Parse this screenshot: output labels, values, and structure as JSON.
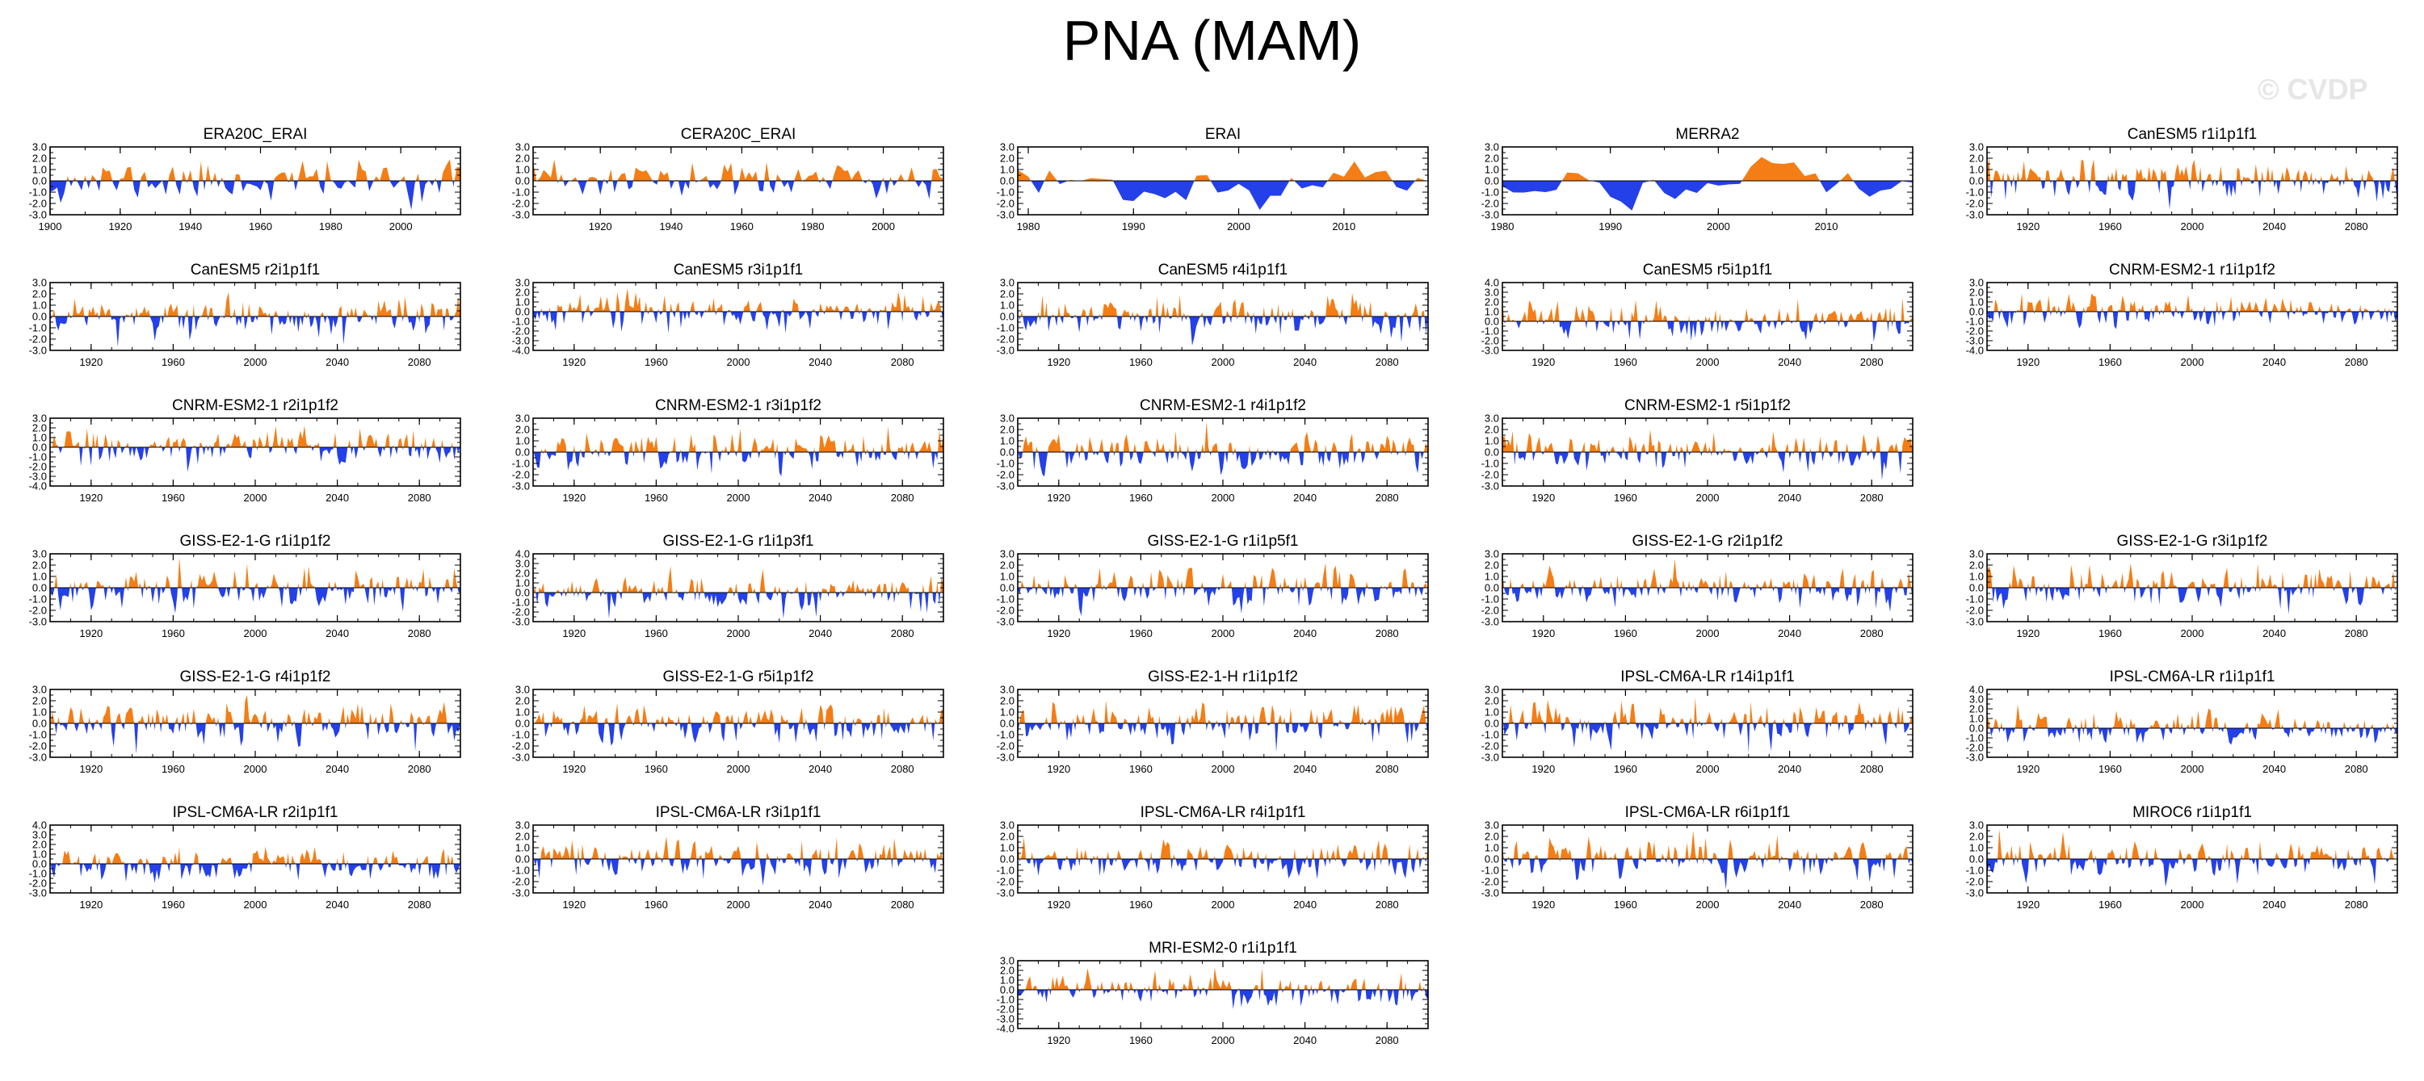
{
  "figure": {
    "title": "PNA (MAM)",
    "watermark": "© CVDP",
    "colors": {
      "positive": "#f47d15",
      "negative": "#2440e8",
      "axis": "#000000"
    }
  },
  "chart_data": [
    {
      "type": "area",
      "title": "ERA20C_ERAI",
      "xlim": [
        1900,
        2017
      ],
      "xticks": [
        1900,
        1920,
        1940,
        1960,
        1980,
        2000
      ],
      "ylim": [
        -3,
        3
      ],
      "yticks": [
        3,
        2,
        1,
        0,
        -1,
        -2,
        -3
      ],
      "seed": 11
    },
    {
      "type": "area",
      "title": "CERA20C_ERAI",
      "xlim": [
        1901,
        2017
      ],
      "xticks": [
        1920,
        1940,
        1960,
        1980,
        2000
      ],
      "ylim": [
        -3,
        3
      ],
      "yticks": [
        3,
        2,
        1,
        0,
        -1,
        -2,
        -3
      ],
      "seed": 23
    },
    {
      "type": "area",
      "title": "ERAI",
      "xlim": [
        1979,
        2018
      ],
      "xticks": [
        1980,
        1990,
        2000,
        2010
      ],
      "ylim": [
        -3,
        3
      ],
      "yticks": [
        3,
        2,
        1,
        0,
        -1,
        -2,
        -3
      ],
      "seed": 37
    },
    {
      "type": "area",
      "title": "MERRA2",
      "xlim": [
        1980,
        2018
      ],
      "xticks": [
        1980,
        1990,
        2000,
        2010
      ],
      "ylim": [
        -3,
        3
      ],
      "yticks": [
        3,
        2,
        1,
        0,
        -1,
        -2,
        -3
      ],
      "seed": 41
    },
    {
      "type": "area",
      "title": "CanESM5 r1i1p1f1",
      "xlim": [
        1900,
        2100
      ],
      "xticks": [
        1920,
        1960,
        2000,
        2040,
        2080
      ],
      "ylim": [
        -3,
        3
      ],
      "yticks": [
        3,
        2,
        1,
        0,
        -1,
        -2,
        -3
      ],
      "seed": 53
    },
    {
      "type": "area",
      "title": "CanESM5 r2i1p1f1",
      "xlim": [
        1900,
        2100
      ],
      "xticks": [
        1920,
        1960,
        2000,
        2040,
        2080
      ],
      "ylim": [
        -3,
        3
      ],
      "yticks": [
        3,
        2,
        1,
        0,
        -1,
        -2,
        -3
      ],
      "seed": 61
    },
    {
      "type": "area",
      "title": "CanESM5 r3i1p1f1",
      "xlim": [
        1900,
        2100
      ],
      "xticks": [
        1920,
        1960,
        2000,
        2040,
        2080
      ],
      "ylim": [
        -4,
        3
      ],
      "yticks": [
        3,
        2,
        1,
        0,
        -1,
        -2,
        -3,
        -4
      ],
      "seed": 67
    },
    {
      "type": "area",
      "title": "CanESM5 r4i1p1f1",
      "xlim": [
        1900,
        2100
      ],
      "xticks": [
        1920,
        1960,
        2000,
        2040,
        2080
      ],
      "ylim": [
        -3,
        3
      ],
      "yticks": [
        3,
        2,
        1,
        0,
        -1,
        -2,
        -3
      ],
      "seed": 71
    },
    {
      "type": "area",
      "title": "CanESM5 r5i1p1f1",
      "xlim": [
        1900,
        2100
      ],
      "xticks": [
        1920,
        1960,
        2000,
        2040,
        2080
      ],
      "ylim": [
        -3,
        4
      ],
      "yticks": [
        4,
        3,
        2,
        1,
        0,
        -1,
        -2,
        -3
      ],
      "seed": 79
    },
    {
      "type": "area",
      "title": "CNRM-ESM2-1 r1i1p1f2",
      "xlim": [
        1900,
        2100
      ],
      "xticks": [
        1920,
        1960,
        2000,
        2040,
        2080
      ],
      "ylim": [
        -4,
        3
      ],
      "yticks": [
        3,
        2,
        1,
        0,
        -1,
        -2,
        -3,
        -4
      ],
      "seed": 83
    },
    {
      "type": "area",
      "title": "CNRM-ESM2-1 r2i1p1f2",
      "xlim": [
        1900,
        2100
      ],
      "xticks": [
        1920,
        1960,
        2000,
        2040,
        2080
      ],
      "ylim": [
        -4,
        3
      ],
      "yticks": [
        3,
        2,
        1,
        0,
        -1,
        -2,
        -3,
        -4
      ],
      "seed": 89
    },
    {
      "type": "area",
      "title": "CNRM-ESM2-1 r3i1p1f2",
      "xlim": [
        1900,
        2100
      ],
      "xticks": [
        1920,
        1960,
        2000,
        2040,
        2080
      ],
      "ylim": [
        -3,
        3
      ],
      "yticks": [
        3,
        2,
        1,
        0,
        -1,
        -2,
        -3
      ],
      "seed": 97
    },
    {
      "type": "area",
      "title": "CNRM-ESM2-1 r4i1p1f2",
      "xlim": [
        1900,
        2100
      ],
      "xticks": [
        1920,
        1960,
        2000,
        2040,
        2080
      ],
      "ylim": [
        -3,
        3
      ],
      "yticks": [
        3,
        2,
        1,
        0,
        -1,
        -2,
        -3
      ],
      "seed": 101
    },
    {
      "type": "area",
      "title": "CNRM-ESM2-1 r5i1p1f2",
      "xlim": [
        1900,
        2100
      ],
      "xticks": [
        1920,
        1960,
        2000,
        2040,
        2080
      ],
      "ylim": [
        -3,
        3
      ],
      "yticks": [
        3,
        2,
        1,
        0,
        -1,
        -2,
        -3
      ],
      "seed": 103
    },
    {
      "type": "area",
      "title": "GISS-E2-1-G r1i1p1f2",
      "xlim": [
        1900,
        2100
      ],
      "xticks": [
        1920,
        1960,
        2000,
        2040,
        2080
      ],
      "ylim": [
        -3,
        3
      ],
      "yticks": [
        3,
        2,
        1,
        0,
        -1,
        -2,
        -3
      ],
      "seed": 107
    },
    {
      "type": "area",
      "title": "GISS-E2-1-G r1i1p3f1",
      "xlim": [
        1900,
        2100
      ],
      "xticks": [
        1920,
        1960,
        2000,
        2040,
        2080
      ],
      "ylim": [
        -3,
        4
      ],
      "yticks": [
        4,
        3,
        2,
        1,
        0,
        -1,
        -2,
        -3
      ],
      "seed": 109
    },
    {
      "type": "area",
      "title": "GISS-E2-1-G r1i1p5f1",
      "xlim": [
        1900,
        2100
      ],
      "xticks": [
        1920,
        1960,
        2000,
        2040,
        2080
      ],
      "ylim": [
        -3,
        3
      ],
      "yticks": [
        3,
        2,
        1,
        0,
        -1,
        -2,
        -3
      ],
      "seed": 113
    },
    {
      "type": "area",
      "title": "GISS-E2-1-G r2i1p1f2",
      "xlim": [
        1900,
        2100
      ],
      "xticks": [
        1920,
        1960,
        2000,
        2040,
        2080
      ],
      "ylim": [
        -3,
        3
      ],
      "yticks": [
        3,
        2,
        1,
        0,
        -1,
        -2,
        -3
      ],
      "seed": 127
    },
    {
      "type": "area",
      "title": "GISS-E2-1-G r3i1p1f2",
      "xlim": [
        1900,
        2100
      ],
      "xticks": [
        1920,
        1960,
        2000,
        2040,
        2080
      ],
      "ylim": [
        -3,
        3
      ],
      "yticks": [
        3,
        2,
        1,
        0,
        -1,
        -2,
        -3
      ],
      "seed": 131
    },
    {
      "type": "area",
      "title": "GISS-E2-1-G r4i1p1f2",
      "xlim": [
        1900,
        2100
      ],
      "xticks": [
        1920,
        1960,
        2000,
        2040,
        2080
      ],
      "ylim": [
        -3,
        3
      ],
      "yticks": [
        3,
        2,
        1,
        0,
        -1,
        -2,
        -3
      ],
      "seed": 137
    },
    {
      "type": "area",
      "title": "GISS-E2-1-G r5i1p1f2",
      "xlim": [
        1900,
        2100
      ],
      "xticks": [
        1920,
        1960,
        2000,
        2040,
        2080
      ],
      "ylim": [
        -3,
        3
      ],
      "yticks": [
        3,
        2,
        1,
        0,
        -1,
        -2,
        -3
      ],
      "seed": 139
    },
    {
      "type": "area",
      "title": "GISS-E2-1-H r1i1p1f2",
      "xlim": [
        1900,
        2100
      ],
      "xticks": [
        1920,
        1960,
        2000,
        2040,
        2080
      ],
      "ylim": [
        -3,
        3
      ],
      "yticks": [
        3,
        2,
        1,
        0,
        -1,
        -2,
        -3
      ],
      "seed": 149
    },
    {
      "type": "area",
      "title": "IPSL-CM6A-LR r14i1p1f1",
      "xlim": [
        1900,
        2100
      ],
      "xticks": [
        1920,
        1960,
        2000,
        2040,
        2080
      ],
      "ylim": [
        -3,
        3
      ],
      "yticks": [
        3,
        2,
        1,
        0,
        -1,
        -2,
        -3
      ],
      "seed": 151
    },
    {
      "type": "area",
      "title": "IPSL-CM6A-LR r1i1p1f1",
      "xlim": [
        1900,
        2100
      ],
      "xticks": [
        1920,
        1960,
        2000,
        2040,
        2080
      ],
      "ylim": [
        -3,
        4
      ],
      "yticks": [
        4,
        3,
        2,
        1,
        0,
        -1,
        -2,
        -3
      ],
      "seed": 157
    },
    {
      "type": "area",
      "title": "IPSL-CM6A-LR r2i1p1f1",
      "xlim": [
        1900,
        2100
      ],
      "xticks": [
        1920,
        1960,
        2000,
        2040,
        2080
      ],
      "ylim": [
        -3,
        4
      ],
      "yticks": [
        4,
        3,
        2,
        1,
        0,
        -1,
        -2,
        -3
      ],
      "seed": 163
    },
    {
      "type": "area",
      "title": "IPSL-CM6A-LR r3i1p1f1",
      "xlim": [
        1900,
        2100
      ],
      "xticks": [
        1920,
        1960,
        2000,
        2040,
        2080
      ],
      "ylim": [
        -3,
        3
      ],
      "yticks": [
        3,
        2,
        1,
        0,
        -1,
        -2,
        -3
      ],
      "seed": 167
    },
    {
      "type": "area",
      "title": "IPSL-CM6A-LR r4i1p1f1",
      "xlim": [
        1900,
        2100
      ],
      "xticks": [
        1920,
        1960,
        2000,
        2040,
        2080
      ],
      "ylim": [
        -3,
        3
      ],
      "yticks": [
        3,
        2,
        1,
        0,
        -1,
        -2,
        -3
      ],
      "seed": 173
    },
    {
      "type": "area",
      "title": "IPSL-CM6A-LR r6i1p1f1",
      "xlim": [
        1900,
        2100
      ],
      "xticks": [
        1920,
        1960,
        2000,
        2040,
        2080
      ],
      "ylim": [
        -3,
        3
      ],
      "yticks": [
        3,
        2,
        1,
        0,
        -1,
        -2,
        -3
      ],
      "seed": 179
    },
    {
      "type": "area",
      "title": "MIROC6 r1i1p1f1",
      "xlim": [
        1900,
        2100
      ],
      "xticks": [
        1920,
        1960,
        2000,
        2040,
        2080
      ],
      "ylim": [
        -3,
        3
      ],
      "yticks": [
        3,
        2,
        1,
        0,
        -1,
        -2,
        -3
      ],
      "seed": 181
    },
    {
      "type": "area",
      "title": "MRI-ESM2-0 r1i1p1f1",
      "xlim": [
        1900,
        2100
      ],
      "xticks": [
        1920,
        1960,
        2000,
        2040,
        2080
      ],
      "ylim": [
        -4,
        3
      ],
      "yticks": [
        3,
        2,
        1,
        0,
        -1,
        -2,
        -3,
        -4
      ],
      "seed": 191
    }
  ]
}
